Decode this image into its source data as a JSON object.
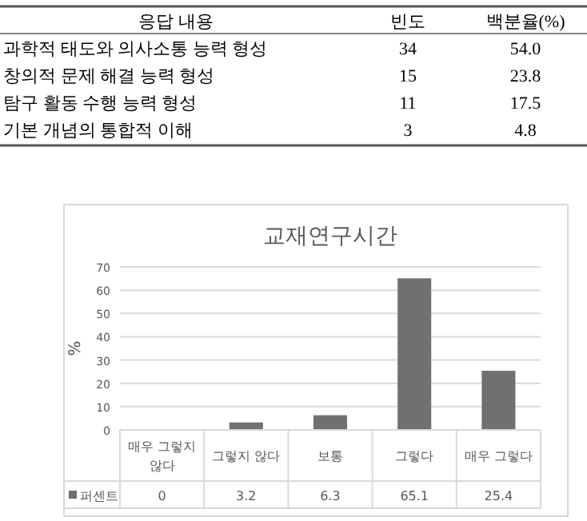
{
  "chart_data": [
    {
      "type": "other",
      "xlabel": "응답 내용",
      "data_labels": true,
      "categories": [
        "과학적 태도와 의사소통 능력 형성",
        "창의적 문제  해결 능력 형성",
        "탐구 활동  수행 능력 형성",
        "기본 개념의  통합적 이해"
      ],
      "series": [
        {
          "name": "빈도",
          "values": [
            34,
            15,
            11,
            3
          ]
        },
        {
          "name": "백분율(%)",
          "values": [
            54.0,
            23.8,
            17.5,
            4.8
          ],
          "value_labels": [
            "54.0",
            "23.8",
            "17.5",
            "4.8"
          ]
        }
      ]
    },
    {
      "type": "bar",
      "title": "교재연구시간",
      "ylabel": "%",
      "categories": [
        "매우 그렇지 않다",
        "그렇지 않다",
        "보통",
        "그렇다",
        "매우 그렇다"
      ],
      "series": [
        {
          "name": "퍼센트",
          "color": "#707070",
          "values": [
            0,
            3.2,
            6.3,
            65.1,
            25.4
          ]
        }
      ],
      "ylim": [
        0,
        70
      ],
      "yticks": [
        0,
        10,
        20,
        30,
        40,
        50,
        60,
        70
      ],
      "grid": "y",
      "data_labels": true
    }
  ]
}
